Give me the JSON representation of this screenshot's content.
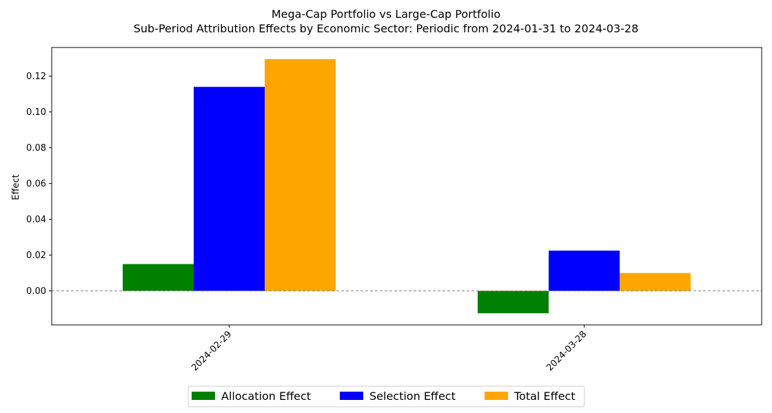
{
  "chart_data": {
    "type": "bar",
    "title": "Mega-Cap Portfolio vs Large-Cap Portfolio",
    "subtitle": "Sub-Period Attribution Effects by Economic Sector: Periodic from 2024-01-31 to 2024-03-28",
    "xlabel": "",
    "ylabel": "Effect",
    "categories": [
      "2024-02-29",
      "2024-03-28"
    ],
    "series": [
      {
        "name": "Allocation Effect",
        "color": "#008000",
        "values": [
          0.015,
          -0.0125
        ]
      },
      {
        "name": "Selection Effect",
        "color": "#0000ff",
        "values": [
          0.114,
          0.0225
        ]
      },
      {
        "name": "Total Effect",
        "color": "#ffa500",
        "values": [
          0.1295,
          0.01
        ]
      }
    ],
    "ylim": [
      -0.019,
      0.136
    ],
    "yticks": [
      "0.00",
      "0.02",
      "0.04",
      "0.06",
      "0.08",
      "0.10",
      "0.12"
    ],
    "zero_line": {
      "style": "dashed",
      "color": "#808080"
    },
    "grid": false,
    "legend_position": "bottom-center"
  }
}
